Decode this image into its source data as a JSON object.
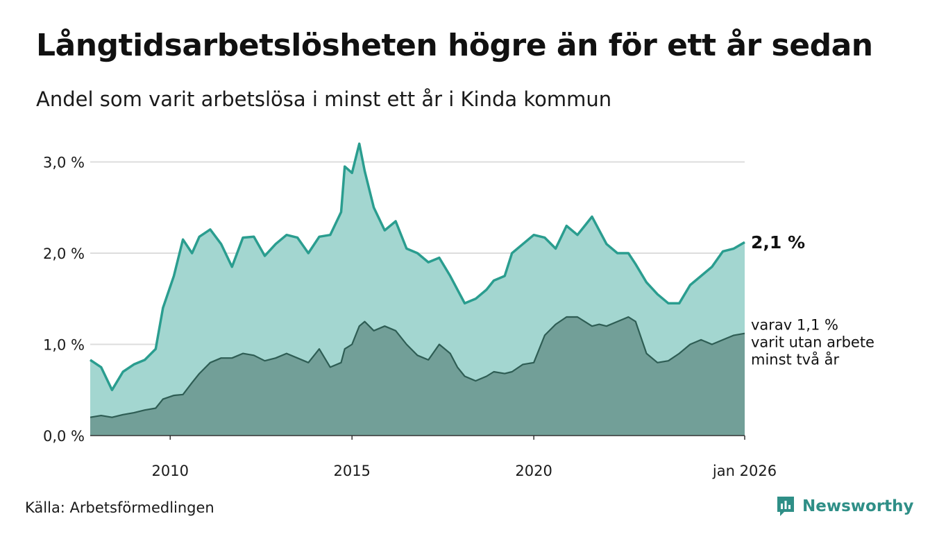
{
  "header": {
    "title": "Långtidsarbetslösheten högre än för ett år sedan",
    "subtitle": "Andel som varit arbetslösa i minst ett år i Kinda kommun"
  },
  "footer": {
    "source": "Källa: Arbetsförmedlingen",
    "brand": "Newsworthy"
  },
  "chart_data": {
    "type": "area",
    "title": "Långtidsarbetslösheten högre än för ett år sedan",
    "subtitle": "Andel som varit arbetslösa i minst ett år i Kinda kommun",
    "ylabel": "",
    "xlabel": "",
    "ylim": [
      0,
      3.2
    ],
    "xlim": [
      2008.0,
      2026.0
    ],
    "grid": true,
    "y_ticks": [
      {
        "value": 0,
        "label": "0,0 %"
      },
      {
        "value": 1,
        "label": "1,0 %"
      },
      {
        "value": 2,
        "label": "2,0 %"
      },
      {
        "value": 3,
        "label": "3,0 %"
      }
    ],
    "x_ticks": [
      {
        "value": 2010.2,
        "label": "2010"
      },
      {
        "value": 2015.2,
        "label": "2015"
      },
      {
        "value": 2020.2,
        "label": "2020"
      },
      {
        "value": 2026.0,
        "label": "jan 2026"
      }
    ],
    "end_label": "2,1 %",
    "annotation": [
      "varav 1,1 %",
      "varit utan arbete",
      "minst två år"
    ],
    "series": [
      {
        "name": "Minst ett år",
        "line_color": "#2a9d8f",
        "fill_color": "#a3d6d0",
        "points": [
          [
            2008.0,
            0.83
          ],
          [
            2008.3,
            0.75
          ],
          [
            2008.6,
            0.5
          ],
          [
            2008.9,
            0.7
          ],
          [
            2009.2,
            0.78
          ],
          [
            2009.5,
            0.83
          ],
          [
            2009.8,
            0.95
          ],
          [
            2010.0,
            1.4
          ],
          [
            2010.3,
            1.75
          ],
          [
            2010.55,
            2.15
          ],
          [
            2010.8,
            2.0
          ],
          [
            2011.0,
            2.18
          ],
          [
            2011.3,
            2.26
          ],
          [
            2011.6,
            2.1
          ],
          [
            2011.9,
            1.85
          ],
          [
            2012.2,
            2.17
          ],
          [
            2012.5,
            2.18
          ],
          [
            2012.8,
            1.97
          ],
          [
            2013.1,
            2.1
          ],
          [
            2013.4,
            2.2
          ],
          [
            2013.7,
            2.17
          ],
          [
            2014.0,
            2.0
          ],
          [
            2014.3,
            2.18
          ],
          [
            2014.6,
            2.2
          ],
          [
            2014.9,
            2.45
          ],
          [
            2015.0,
            2.95
          ],
          [
            2015.2,
            2.88
          ],
          [
            2015.4,
            3.2
          ],
          [
            2015.55,
            2.9
          ],
          [
            2015.8,
            2.5
          ],
          [
            2016.1,
            2.25
          ],
          [
            2016.4,
            2.35
          ],
          [
            2016.7,
            2.05
          ],
          [
            2017.0,
            2.0
          ],
          [
            2017.3,
            1.9
          ],
          [
            2017.6,
            1.95
          ],
          [
            2017.9,
            1.75
          ],
          [
            2018.1,
            1.6
          ],
          [
            2018.3,
            1.45
          ],
          [
            2018.6,
            1.5
          ],
          [
            2018.9,
            1.6
          ],
          [
            2019.1,
            1.7
          ],
          [
            2019.4,
            1.75
          ],
          [
            2019.6,
            2.0
          ],
          [
            2019.9,
            2.1
          ],
          [
            2020.2,
            2.2
          ],
          [
            2020.5,
            2.17
          ],
          [
            2020.8,
            2.05
          ],
          [
            2021.1,
            2.3
          ],
          [
            2021.4,
            2.2
          ],
          [
            2021.6,
            2.3
          ],
          [
            2021.8,
            2.4
          ],
          [
            2022.0,
            2.25
          ],
          [
            2022.2,
            2.1
          ],
          [
            2022.5,
            2.0
          ],
          [
            2022.8,
            2.0
          ],
          [
            2023.0,
            1.88
          ],
          [
            2023.3,
            1.68
          ],
          [
            2023.6,
            1.55
          ],
          [
            2023.9,
            1.45
          ],
          [
            2024.2,
            1.45
          ],
          [
            2024.5,
            1.65
          ],
          [
            2024.8,
            1.75
          ],
          [
            2025.1,
            1.85
          ],
          [
            2025.4,
            2.02
          ],
          [
            2025.7,
            2.05
          ],
          [
            2026.0,
            2.12
          ]
        ]
      },
      {
        "name": "Minst två år",
        "line_color": "#2e5d54",
        "fill_color": "#729f98",
        "points": [
          [
            2008.0,
            0.2
          ],
          [
            2008.3,
            0.22
          ],
          [
            2008.6,
            0.2
          ],
          [
            2008.9,
            0.23
          ],
          [
            2009.2,
            0.25
          ],
          [
            2009.5,
            0.28
          ],
          [
            2009.8,
            0.3
          ],
          [
            2010.0,
            0.4
          ],
          [
            2010.3,
            0.44
          ],
          [
            2010.55,
            0.45
          ],
          [
            2010.8,
            0.58
          ],
          [
            2011.0,
            0.68
          ],
          [
            2011.3,
            0.8
          ],
          [
            2011.6,
            0.85
          ],
          [
            2011.9,
            0.85
          ],
          [
            2012.2,
            0.9
          ],
          [
            2012.5,
            0.88
          ],
          [
            2012.8,
            0.82
          ],
          [
            2013.1,
            0.85
          ],
          [
            2013.4,
            0.9
          ],
          [
            2013.7,
            0.85
          ],
          [
            2014.0,
            0.8
          ],
          [
            2014.3,
            0.95
          ],
          [
            2014.6,
            0.75
          ],
          [
            2014.9,
            0.8
          ],
          [
            2015.0,
            0.95
          ],
          [
            2015.2,
            1.0
          ],
          [
            2015.4,
            1.2
          ],
          [
            2015.55,
            1.25
          ],
          [
            2015.8,
            1.15
          ],
          [
            2016.1,
            1.2
          ],
          [
            2016.4,
            1.15
          ],
          [
            2016.7,
            1.0
          ],
          [
            2017.0,
            0.88
          ],
          [
            2017.3,
            0.83
          ],
          [
            2017.6,
            1.0
          ],
          [
            2017.9,
            0.9
          ],
          [
            2018.1,
            0.75
          ],
          [
            2018.3,
            0.65
          ],
          [
            2018.6,
            0.6
          ],
          [
            2018.9,
            0.65
          ],
          [
            2019.1,
            0.7
          ],
          [
            2019.4,
            0.68
          ],
          [
            2019.6,
            0.7
          ],
          [
            2019.9,
            0.78
          ],
          [
            2020.2,
            0.8
          ],
          [
            2020.5,
            1.1
          ],
          [
            2020.8,
            1.22
          ],
          [
            2021.1,
            1.3
          ],
          [
            2021.4,
            1.3
          ],
          [
            2021.6,
            1.25
          ],
          [
            2021.8,
            1.2
          ],
          [
            2022.0,
            1.22
          ],
          [
            2022.2,
            1.2
          ],
          [
            2022.5,
            1.25
          ],
          [
            2022.8,
            1.3
          ],
          [
            2023.0,
            1.25
          ],
          [
            2023.3,
            0.9
          ],
          [
            2023.6,
            0.8
          ],
          [
            2023.9,
            0.82
          ],
          [
            2024.2,
            0.9
          ],
          [
            2024.5,
            1.0
          ],
          [
            2024.8,
            1.05
          ],
          [
            2025.1,
            1.0
          ],
          [
            2025.4,
            1.05
          ],
          [
            2025.7,
            1.1
          ],
          [
            2026.0,
            1.12
          ]
        ]
      }
    ]
  },
  "colors": {
    "grid": "#dddddd",
    "axis": "#333333",
    "brand": "#2f8f87"
  }
}
